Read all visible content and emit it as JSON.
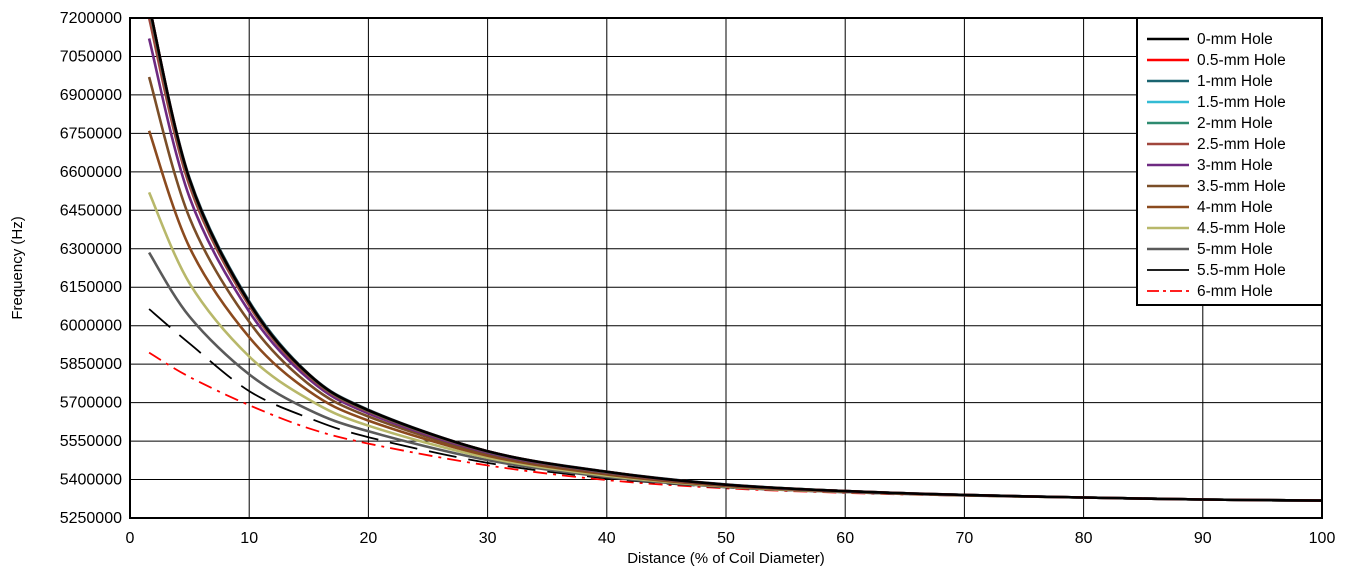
{
  "chart_data": {
    "type": "line",
    "xlabel": "Distance (% of Coil Diameter)",
    "ylabel": "Frequency (Hz)",
    "xlim": [
      0,
      100
    ],
    "ylim": [
      5250000,
      7200000
    ],
    "xticks": [
      0,
      10,
      20,
      30,
      40,
      50,
      60,
      70,
      80,
      90,
      100
    ],
    "yticks": [
      5250000,
      5400000,
      5550000,
      5700000,
      5850000,
      6000000,
      6150000,
      6300000,
      6450000,
      6600000,
      6750000,
      6900000,
      7050000,
      7200000
    ],
    "grid": true,
    "legend_position": "top-right",
    "series": [
      {
        "name": "0-mm Hole",
        "color": "#000000",
        "dash": "solid",
        "x": [
          1.6,
          5,
          10,
          15,
          20,
          30,
          40,
          50,
          60,
          70,
          80,
          90,
          100
        ],
        "y": [
          7250000,
          6570000,
          6090000,
          5810000,
          5670000,
          5510000,
          5430000,
          5380000,
          5355000,
          5340000,
          5330000,
          5322000,
          5318000
        ]
      },
      {
        "name": "0.5-mm Hole",
        "color": "#ff0000",
        "dash": "solid",
        "x": [
          1.6,
          5,
          10,
          15,
          20,
          30,
          40,
          50,
          60,
          70,
          80,
          90,
          100
        ],
        "y": [
          7250000,
          6570000,
          6090000,
          5810000,
          5670000,
          5510000,
          5430000,
          5380000,
          5355000,
          5340000,
          5330000,
          5322000,
          5318000
        ]
      },
      {
        "name": "1-mm Hole",
        "color": "#1a6470",
        "dash": "solid",
        "x": [
          1.6,
          5,
          10,
          15,
          20,
          30,
          40,
          50,
          60,
          70,
          80,
          90,
          100
        ],
        "y": [
          7250000,
          6575000,
          6095000,
          5812000,
          5672000,
          5511000,
          5431000,
          5381000,
          5355000,
          5340000,
          5330000,
          5322000,
          5318000
        ]
      },
      {
        "name": "1.5-mm Hole",
        "color": "#33bbd4",
        "dash": "solid",
        "x": [
          1.6,
          5,
          10,
          15,
          20,
          30,
          40,
          50,
          60,
          70,
          80,
          90,
          100
        ],
        "y": [
          7250000,
          6572000,
          6092000,
          5811000,
          5671000,
          5510000,
          5430000,
          5380000,
          5355000,
          5340000,
          5330000,
          5322000,
          5318000
        ]
      },
      {
        "name": "2-mm Hole",
        "color": "#2e8b70",
        "dash": "solid",
        "x": [
          1.6,
          5,
          10,
          15,
          20,
          30,
          40,
          50,
          60,
          70,
          80,
          90,
          100
        ],
        "y": [
          7240000,
          6565000,
          6088000,
          5808000,
          5668000,
          5509000,
          5429000,
          5380000,
          5355000,
          5340000,
          5330000,
          5322000,
          5318000
        ]
      },
      {
        "name": "2.5-mm Hole",
        "color": "#a0463c",
        "dash": "solid",
        "x": [
          1.6,
          5,
          10,
          15,
          20,
          30,
          40,
          50,
          60,
          70,
          80,
          90,
          100
        ],
        "y": [
          7200000,
          6545000,
          6078000,
          5803000,
          5665000,
          5508000,
          5428000,
          5379000,
          5355000,
          5340000,
          5330000,
          5322000,
          5318000
        ]
      },
      {
        "name": "3-mm Hole",
        "color": "#6e2a82",
        "dash": "solid",
        "x": [
          1.6,
          5,
          10,
          15,
          20,
          30,
          40,
          50,
          60,
          70,
          80,
          90,
          100
        ],
        "y": [
          7120000,
          6500000,
          6055000,
          5792000,
          5658000,
          5505000,
          5427000,
          5379000,
          5354000,
          5340000,
          5330000,
          5322000,
          5318000
        ]
      },
      {
        "name": "3.5-mm Hole",
        "color": "#7a4e28",
        "dash": "solid",
        "x": [
          1.6,
          5,
          10,
          15,
          20,
          30,
          40,
          50,
          60,
          70,
          80,
          90,
          100
        ],
        "y": [
          6970000,
          6420000,
          6015000,
          5772000,
          5646000,
          5500000,
          5424000,
          5377000,
          5354000,
          5339000,
          5330000,
          5322000,
          5318000
        ]
      },
      {
        "name": "4-mm Hole",
        "color": "#8b4a1e",
        "dash": "solid",
        "x": [
          1.6,
          5,
          10,
          15,
          20,
          30,
          40,
          50,
          60,
          70,
          80,
          90,
          100
        ],
        "y": [
          6760000,
          6305000,
          5955000,
          5745000,
          5630000,
          5493000,
          5420000,
          5375000,
          5353000,
          5339000,
          5330000,
          5322000,
          5318000
        ]
      },
      {
        "name": "4.5-mm Hole",
        "color": "#b8b86a",
        "dash": "solid",
        "x": [
          1.6,
          5,
          10,
          15,
          20,
          30,
          40,
          50,
          60,
          70,
          80,
          90,
          100
        ],
        "y": [
          6520000,
          6165000,
          5880000,
          5712000,
          5610000,
          5485000,
          5415000,
          5373000,
          5352000,
          5339000,
          5330000,
          5322000,
          5318000
        ]
      },
      {
        "name": "5-mm Hole",
        "color": "#5a5a5a",
        "dash": "solid",
        "x": [
          1.6,
          5,
          10,
          15,
          20,
          30,
          40,
          50,
          60,
          70,
          80,
          90,
          100
        ],
        "y": [
          6285000,
          6035000,
          5810000,
          5672000,
          5588000,
          5476000,
          5410000,
          5371000,
          5351000,
          5338000,
          5330000,
          5322000,
          5318000
        ]
      },
      {
        "name": "5.5-mm Hole",
        "color": "#000000",
        "dash": "long-dash",
        "x": [
          1.6,
          5,
          10,
          15,
          20,
          30,
          40,
          50,
          60,
          70,
          80,
          90,
          100
        ],
        "y": [
          6065000,
          5930000,
          5745000,
          5640000,
          5565000,
          5465000,
          5405000,
          5369000,
          5350000,
          5338000,
          5330000,
          5322000,
          5318000
        ]
      },
      {
        "name": "6-mm Hole",
        "color": "#ff0000",
        "dash": "dash-dot",
        "x": [
          1.6,
          5,
          10,
          15,
          20,
          30,
          40,
          50,
          60,
          70,
          80,
          90,
          100
        ],
        "y": [
          5895000,
          5800000,
          5690000,
          5600000,
          5540000,
          5455000,
          5398000,
          5366000,
          5348000,
          5337000,
          5329000,
          5322000,
          5318000
        ]
      }
    ]
  }
}
